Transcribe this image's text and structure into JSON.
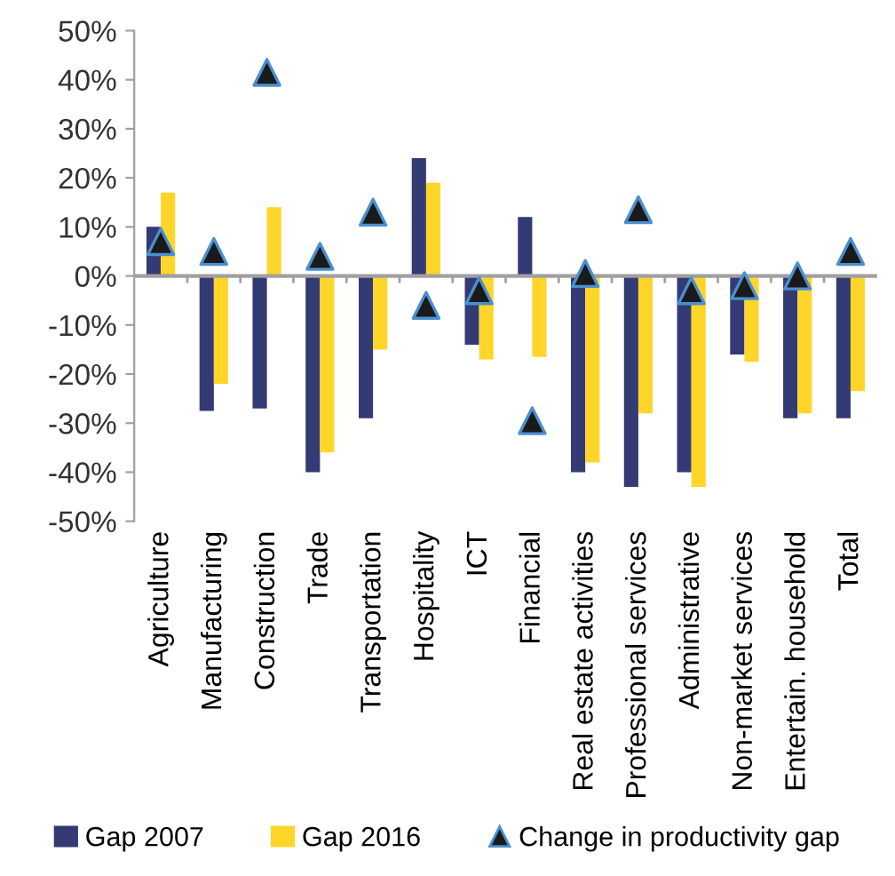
{
  "chart_data": {
    "type": "bar",
    "categories": [
      "Agriculture",
      "Manufacturing",
      "Construction",
      "Trade",
      "Transportation",
      "Hospitality",
      "ICT",
      "Financial",
      "Real estate activities",
      "Professional services",
      "Administrative",
      "Non-market services",
      "Entertain. household",
      "Total"
    ],
    "series": [
      {
        "name": "Gap 2007",
        "color": "#333a74",
        "values": [
          10,
          -27.5,
          -27,
          -40,
          -29,
          24,
          -14,
          12,
          -40,
          -43,
          -40,
          -16,
          -29,
          -29
        ]
      },
      {
        "name": "Gap 2016",
        "color": "#ffd52a",
        "values": [
          17,
          -22,
          14,
          -36,
          -15,
          19,
          -17,
          -16.5,
          -38,
          -28,
          -43,
          -17.5,
          -28,
          -23.5
        ]
      },
      {
        "name": "Change in productivity gap",
        "type": "scatter",
        "marker": "triangle",
        "color": "#1a1a1a",
        "values": [
          7,
          5,
          41.5,
          4,
          13,
          -6,
          -3,
          -29.5,
          0.5,
          13.5,
          -3,
          -2,
          0,
          5
        ]
      }
    ],
    "ylim": [
      -50,
      50
    ],
    "yticks": [
      {
        "value": -50,
        "label": "-50%"
      },
      {
        "value": -40,
        "label": "-40%"
      },
      {
        "value": -30,
        "label": "-30%"
      },
      {
        "value": -20,
        "label": "-20%"
      },
      {
        "value": -10,
        "label": "-10%"
      },
      {
        "value": 0,
        "label": "0%"
      },
      {
        "value": 10,
        "label": "10%"
      },
      {
        "value": 20,
        "label": "20%"
      },
      {
        "value": 30,
        "label": "30%"
      },
      {
        "value": 40,
        "label": "40%"
      },
      {
        "value": 50,
        "label": "50%"
      }
    ],
    "legend": "bottom"
  }
}
